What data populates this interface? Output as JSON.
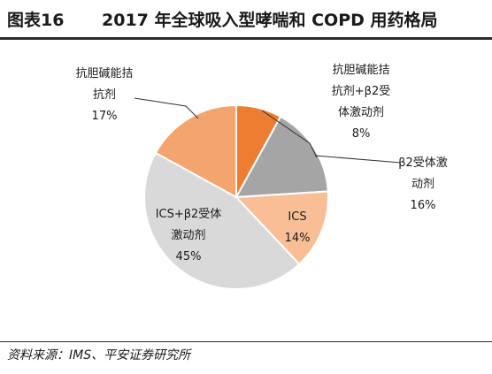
{
  "figure": {
    "label": "图表16",
    "title": "2017 年全球吸入型哮喘和 COPD 用药格局",
    "source": "资料来源：IMS、平安证券研究所"
  },
  "chart_data": {
    "type": "pie",
    "start_angle_deg": 90,
    "direction": "clockwise",
    "slices": [
      {
        "label_lines": [
          "抗胆碱能拮",
          "抗剂+β2受",
          "体激动剂"
        ],
        "value": 8,
        "value_text": "8%",
        "color": "#ED7D31"
      },
      {
        "label_lines": [
          "β2受体激",
          "动剂"
        ],
        "value": 16,
        "value_text": "16%",
        "color": "#A5A5A5"
      },
      {
        "label_lines": [
          "ICS"
        ],
        "value": 14,
        "value_text": "14%",
        "color": "#F8BF97"
      },
      {
        "label_lines": [
          "ICS+β2受体",
          "激动剂"
        ],
        "value": 45,
        "value_text": "45%",
        "color": "#D9D9D9"
      },
      {
        "label_lines": [
          "抗胆碱能拮",
          "抗剂"
        ],
        "value": 17,
        "value_text": "17%",
        "color": "#F4A46F"
      }
    ]
  }
}
